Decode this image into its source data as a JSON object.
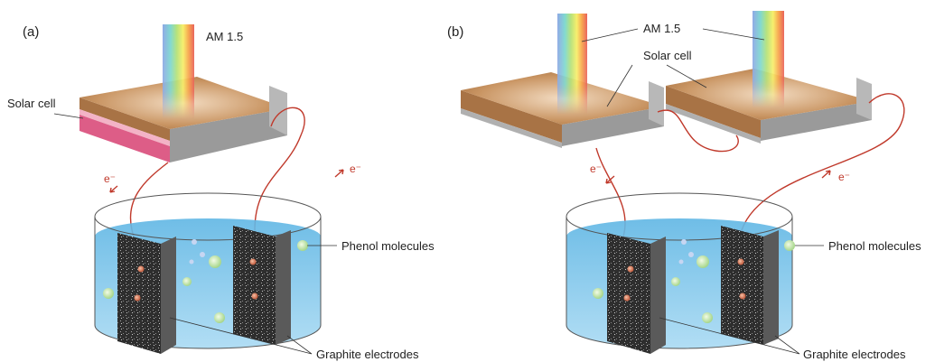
{
  "panels": [
    {
      "label": "(a)",
      "light_label": "AM 1.5",
      "solar_cell_label": "Solar cell",
      "electron_labels": [
        "e⁻",
        "e⁻"
      ],
      "molecule_label": "Phenol molecules",
      "electrode_label": "Graphite electrodes"
    },
    {
      "label": "(b)",
      "light_label": "AM 1.5",
      "solar_cell_label": "Solar cell",
      "electron_labels": [
        "e⁻",
        "e⁻"
      ],
      "molecule_label": "Phenol molecules",
      "electrode_label": "Graphite electrodes"
    }
  ]
}
